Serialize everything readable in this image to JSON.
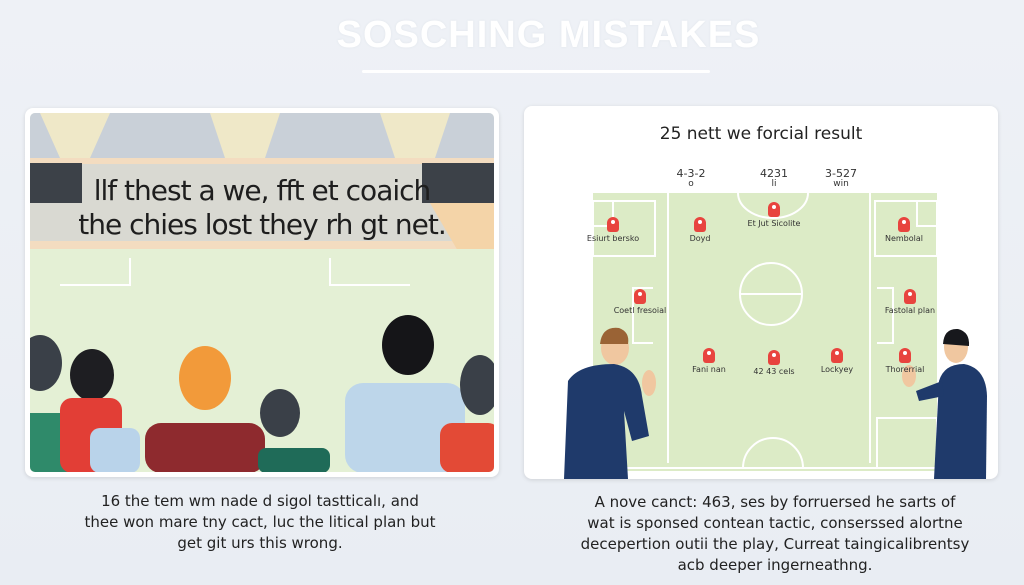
{
  "header": {
    "title": "SOSCHING MISTAKES"
  },
  "left_panel": {
    "banner_lines": [
      "llf thest a we, fft et coaich",
      "the chies lost they rh gt net."
    ],
    "caption_lines": [
      "16 the tem wm nade d sigol tastticalı, and",
      "thee won mare tny cact, luc the litical plan but",
      "get git urs this wrong."
    ]
  },
  "right_panel": {
    "title": "25 nett we forcial result",
    "formations": [
      {
        "label": "4-3-2",
        "sub": "o"
      },
      {
        "label": "4231",
        "sub": "li"
      },
      {
        "label": "3-527",
        "sub": "win"
      }
    ],
    "markers": [
      {
        "label": "Esiurt bersko"
      },
      {
        "label": "Doyd"
      },
      {
        "label": "Et Jut Sicolite"
      },
      {
        "label": "Nembolal"
      },
      {
        "label": "Coetl fresoial"
      },
      {
        "label": "Fastolal plan"
      },
      {
        "label": "Fani nan"
      },
      {
        "label": "42 43 cels"
      },
      {
        "label": "Lockyey"
      },
      {
        "label": "Thorerrial"
      }
    ],
    "caption_lines": [
      "A nove canct: 463, ses by forruersed he sarts of",
      "wat is sponsed contean tactic, conserssed alortne",
      "decepertion outii the play, Curreat taingicalibrentsy",
      "acb deeper ingerneathng."
    ]
  },
  "colors": {
    "pitch": "#dcebc6",
    "marker": "#e8443e",
    "suit": "#1f3a6b"
  }
}
